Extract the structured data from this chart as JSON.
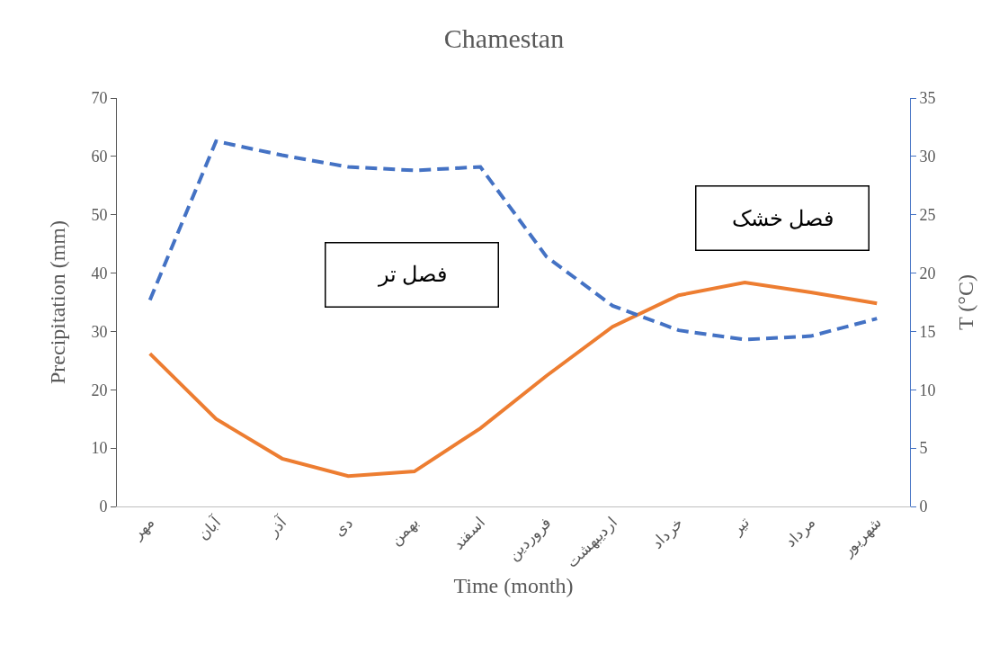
{
  "chart_data": {
    "type": "line",
    "title": "Chamestan",
    "xlabel": "Time (month)",
    "ylabel": "Precipitation (mm)",
    "y2label": "T (°C)",
    "categories": [
      "مهر",
      "آبان",
      "آذر",
      "دی",
      "بهمن",
      "اسفند",
      "فروردین",
      "اردیبهشت",
      "خرداد",
      "تیر",
      "مرداد",
      "شهریور"
    ],
    "series": [
      {
        "color": "#ed7d31",
        "line_style": "solid",
        "values": [
          26.2,
          15.0,
          8.2,
          5.2,
          6.0,
          13.4,
          22.4,
          30.8,
          36.2,
          38.4,
          36.7,
          34.8
        ]
      },
      {
        "color": "#4472c4",
        "line_style": "dashed",
        "axis": "y2",
        "values": [
          17.7,
          31.3,
          30.1,
          29.1,
          28.8,
          29.1,
          21.4,
          17.2,
          15.1,
          14.3,
          14.6,
          16.1
        ]
      }
    ],
    "ylim": [
      0,
      70
    ],
    "yticks": [
      0,
      10,
      20,
      30,
      40,
      50,
      60,
      70
    ],
    "y2lim": [
      0,
      35
    ],
    "y2ticks": [
      0,
      5,
      10,
      15,
      20,
      25,
      30,
      35
    ],
    "annotations": [
      "فصل تر",
      "فصل خشک"
    ],
    "grid": false,
    "marker": "none"
  }
}
